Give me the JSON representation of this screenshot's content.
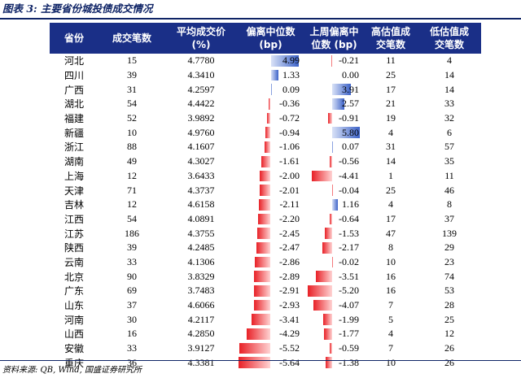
{
  "title": "图表 3:  主要省份城投债成交情况",
  "headers": [
    "省份",
    "成交笔数",
    "平均成交价\n(%)",
    "偏离中位数\n(bp)",
    "上周偏离中\n位数 (bp)",
    "高估值成\n交笔数",
    "低估值成\n交笔数"
  ],
  "rows": [
    {
      "province": "河北",
      "count": "15",
      "avg": "4.7780",
      "dev": "4.99",
      "prev": "-0.21",
      "high": "11",
      "low": "4"
    },
    {
      "province": "四川",
      "count": "39",
      "avg": "4.3410",
      "dev": "1.33",
      "prev": "0.00",
      "high": "25",
      "low": "14"
    },
    {
      "province": "广西",
      "count": "31",
      "avg": "4.2597",
      "dev": "0.09",
      "prev": "3.91",
      "high": "17",
      "low": "14"
    },
    {
      "province": "湖北",
      "count": "54",
      "avg": "4.4422",
      "dev": "-0.36",
      "prev": "2.57",
      "high": "21",
      "low": "33"
    },
    {
      "province": "福建",
      "count": "52",
      "avg": "3.9892",
      "dev": "-0.72",
      "prev": "-0.91",
      "high": "19",
      "low": "32"
    },
    {
      "province": "新疆",
      "count": "10",
      "avg": "4.9760",
      "dev": "-0.94",
      "prev": "5.80",
      "high": "4",
      "low": "6"
    },
    {
      "province": "浙江",
      "count": "88",
      "avg": "4.1607",
      "dev": "-1.06",
      "prev": "0.07",
      "high": "31",
      "low": "57"
    },
    {
      "province": "湖南",
      "count": "49",
      "avg": "4.3027",
      "dev": "-1.61",
      "prev": "-0.56",
      "high": "14",
      "low": "35"
    },
    {
      "province": "上海",
      "count": "12",
      "avg": "3.6433",
      "dev": "-2.00",
      "prev": "-4.41",
      "high": "1",
      "low": "11"
    },
    {
      "province": "天津",
      "count": "71",
      "avg": "4.3737",
      "dev": "-2.01",
      "prev": "-0.04",
      "high": "25",
      "low": "46"
    },
    {
      "province": "吉林",
      "count": "12",
      "avg": "4.6158",
      "dev": "-2.11",
      "prev": "1.16",
      "high": "4",
      "low": "8"
    },
    {
      "province": "江西",
      "count": "54",
      "avg": "4.0891",
      "dev": "-2.20",
      "prev": "-0.64",
      "high": "17",
      "low": "37"
    },
    {
      "province": "江苏",
      "count": "186",
      "avg": "4.3755",
      "dev": "-2.45",
      "prev": "-1.53",
      "high": "47",
      "low": "139"
    },
    {
      "province": "陕西",
      "count": "39",
      "avg": "4.2485",
      "dev": "-2.47",
      "prev": "-2.17",
      "high": "8",
      "low": "29"
    },
    {
      "province": "云南",
      "count": "33",
      "avg": "4.1306",
      "dev": "-2.86",
      "prev": "-0.02",
      "high": "10",
      "low": "23"
    },
    {
      "province": "北京",
      "count": "90",
      "avg": "3.8329",
      "dev": "-2.89",
      "prev": "-3.51",
      "high": "16",
      "low": "74"
    },
    {
      "province": "广东",
      "count": "69",
      "avg": "3.7483",
      "dev": "-2.91",
      "prev": "-5.20",
      "high": "16",
      "low": "53"
    },
    {
      "province": "山东",
      "count": "37",
      "avg": "4.6066",
      "dev": "-2.93",
      "prev": "-4.07",
      "high": "7",
      "low": "28"
    },
    {
      "province": "河南",
      "count": "30",
      "avg": "4.2117",
      "dev": "-3.41",
      "prev": "-1.99",
      "high": "5",
      "low": "25"
    },
    {
      "province": "山西",
      "count": "16",
      "avg": "4.2850",
      "dev": "-4.29",
      "prev": "-1.77",
      "high": "4",
      "low": "12"
    },
    {
      "province": "安徽",
      "count": "33",
      "avg": "3.9127",
      "dev": "-5.52",
      "prev": "-0.59",
      "high": "7",
      "low": "26"
    },
    {
      "province": "重庆",
      "count": "36",
      "avg": "4.3381",
      "dev": "-5.64",
      "prev": "-1.38",
      "high": "10",
      "low": "26"
    }
  ],
  "source": "资料来源: QB, Wind, 国盛证券研究所",
  "colors": {
    "header_bg": "#1a2f87",
    "positive_bar": "#3c62c8",
    "negative_bar": "#e82026",
    "title": "#0f2466"
  }
}
